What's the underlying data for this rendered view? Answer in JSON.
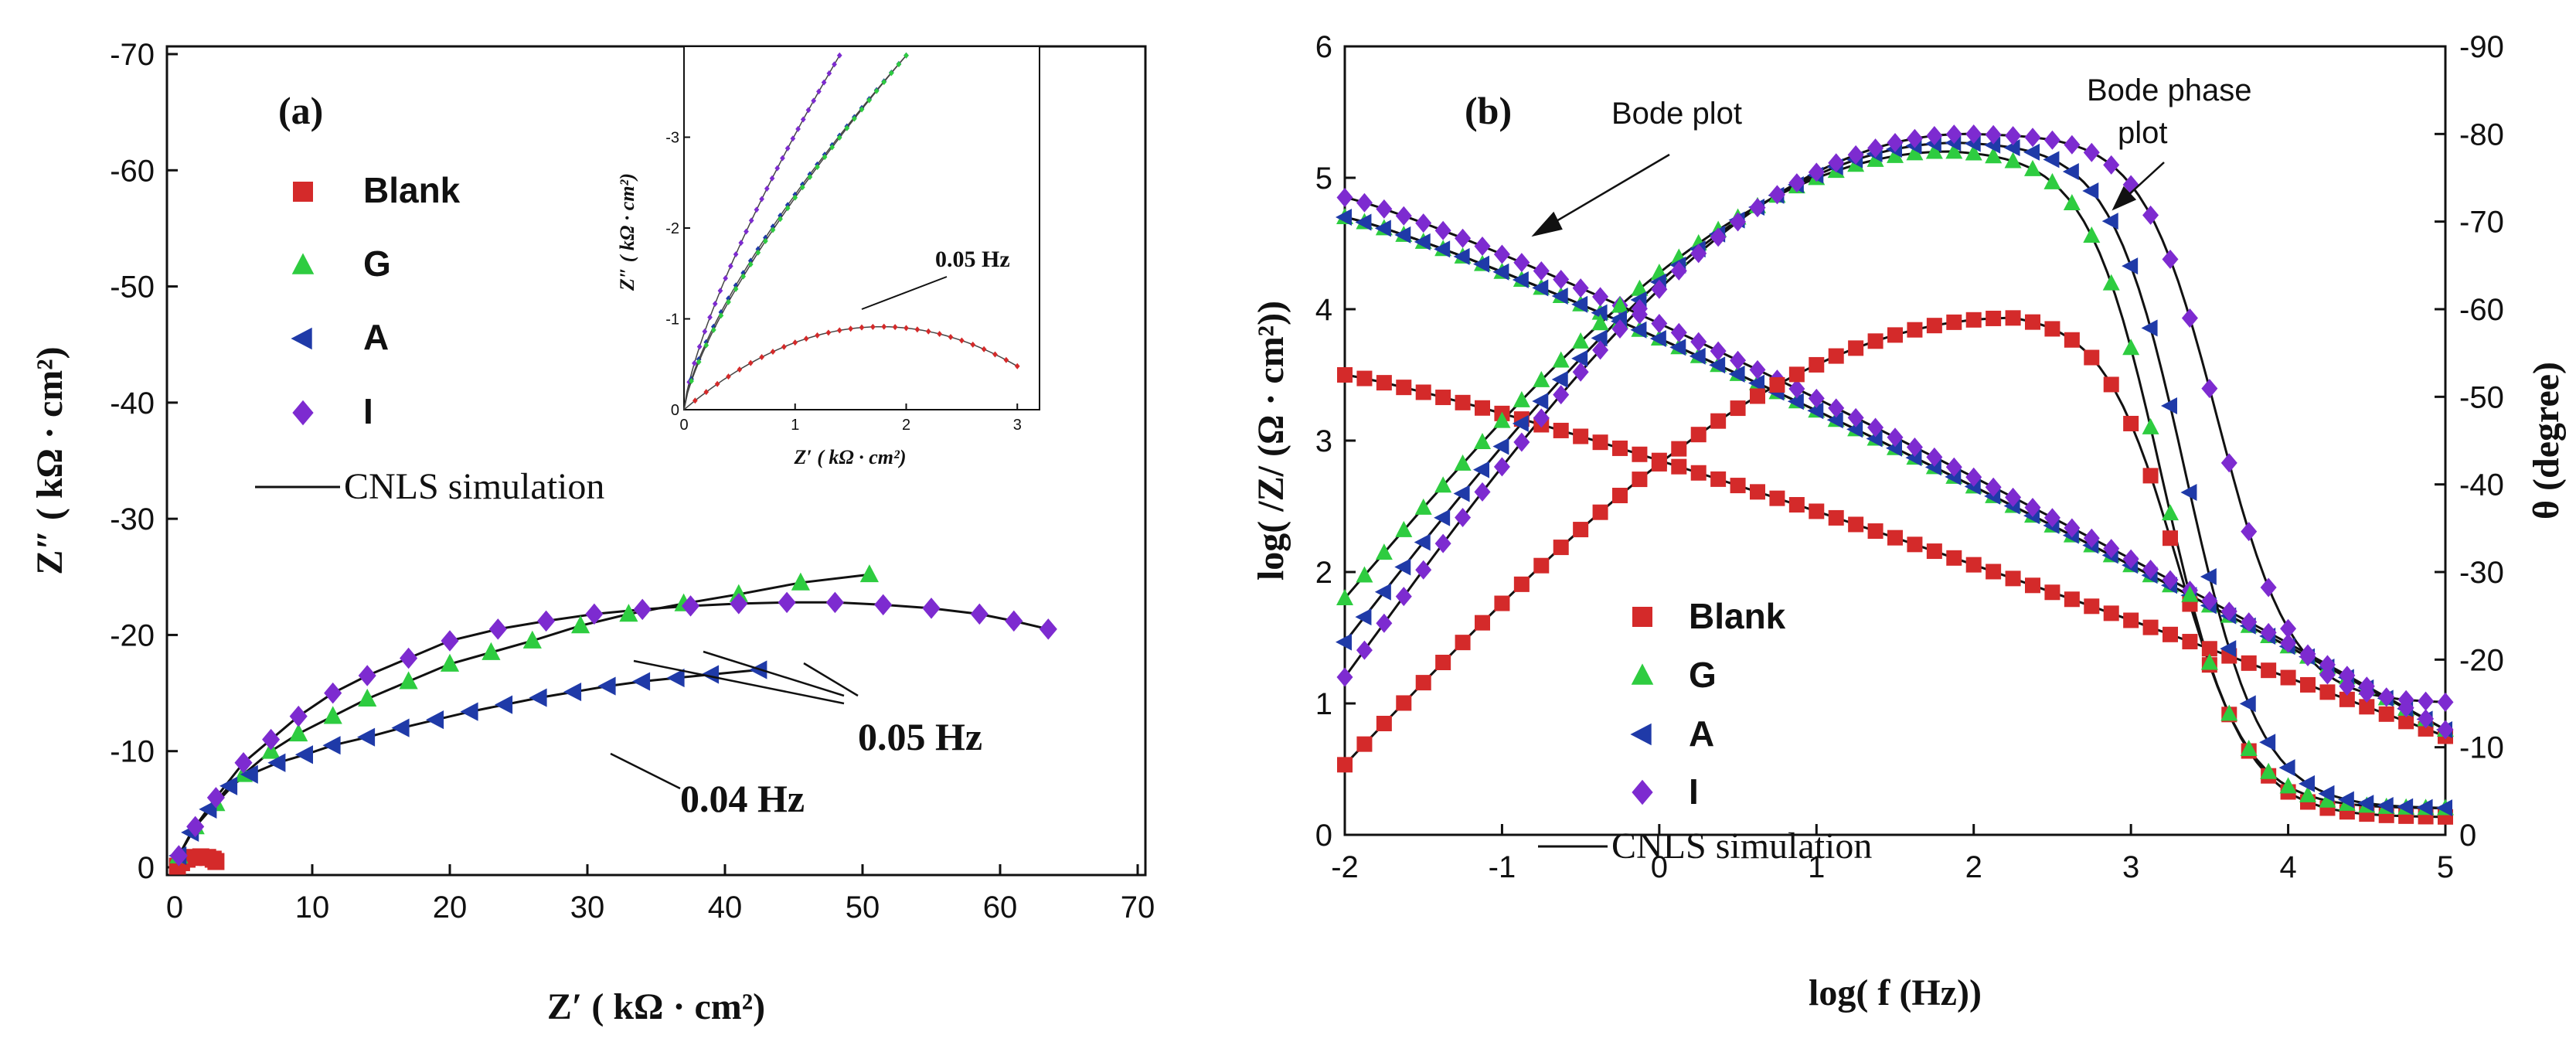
{
  "colors": {
    "Blank": "#d42a2a",
    "G": "#2ecc40",
    "A": "#1f3aa8",
    "I": "#7d2bd0",
    "line": "#111111"
  },
  "chart_data": [
    {
      "id": "a",
      "type": "scatter",
      "panel_label": "(a)",
      "xlabel": "Z′ ( kΩ · cm²)",
      "ylabel": "Z″ ( kΩ · cm²)",
      "xlim": [
        0,
        70
      ],
      "ylim": [
        0,
        -70
      ],
      "xticks": [
        "0",
        "10",
        "20",
        "30",
        "40",
        "50",
        "60",
        "70"
      ],
      "yticks": [
        "0",
        "-10",
        "-20",
        "-30",
        "-40",
        "-50",
        "-60",
        "-70"
      ],
      "legend": [
        "Blank",
        "G",
        "A",
        "I",
        "CNLS simulation"
      ],
      "legend_position": "upper-left",
      "series": [
        {
          "name": "Blank",
          "marker": "square",
          "x": [
            0.2,
            0.5,
            0.9,
            1.4,
            1.9,
            2.4,
            2.8,
            3.0
          ],
          "y": [
            -0.1,
            -0.4,
            -0.7,
            -0.85,
            -0.9,
            -0.85,
            -0.7,
            -0.5
          ]
        },
        {
          "name": "G",
          "marker": "triangle-up",
          "x": [
            0.3,
            1.5,
            3,
            5,
            7,
            9,
            11.5,
            14,
            17,
            20,
            23,
            26,
            29.5,
            33,
            37,
            41,
            45.5,
            50.5
          ],
          "y": [
            -1,
            -3.5,
            -5.5,
            -8,
            -10,
            -11.5,
            -13,
            -14.5,
            -16,
            -17.5,
            -18.5,
            -19.5,
            -20.8,
            -21.8,
            -22.7,
            -23.5,
            -24.5,
            -25.2
          ]
        },
        {
          "name": "A",
          "marker": "triangle-left",
          "x": [
            0.3,
            1.2,
            2.5,
            4,
            5.5,
            7.5,
            9.5,
            11.5,
            14,
            16.5,
            19,
            21.5,
            24,
            26.5,
            29,
            31.5,
            34,
            36.5,
            39,
            42.5
          ],
          "y": [
            -1,
            -3,
            -5,
            -7,
            -8,
            -9,
            -9.7,
            -10.5,
            -11.2,
            -12,
            -12.7,
            -13.4,
            -14,
            -14.6,
            -15.1,
            -15.6,
            -16,
            -16.3,
            -16.6,
            -17
          ]
        },
        {
          "name": "I",
          "marker": "diamond",
          "x": [
            0.3,
            1.5,
            3,
            5,
            7,
            9,
            11.5,
            14,
            17,
            20,
            23.5,
            27,
            30.5,
            34,
            37.5,
            41,
            44.5,
            48,
            51.5,
            55,
            58.5,
            61,
            63.5
          ],
          "y": [
            -1,
            -3.5,
            -6,
            -9,
            -11,
            -13,
            -15,
            -16.5,
            -18,
            -19.5,
            -20.5,
            -21.2,
            -21.8,
            -22.2,
            -22.5,
            -22.7,
            -22.8,
            -22.8,
            -22.6,
            -22.3,
            -21.8,
            -21.2,
            -20.5
          ]
        }
      ],
      "annotations": [
        "0.05 Hz",
        "0.04 Hz"
      ],
      "inset": {
        "xlabel": "Z′ ( kΩ · cm²)",
        "ylabel": "Z″ ( kΩ · cm²)",
        "xlim": [
          0,
          3.2
        ],
        "ylim": [
          0,
          -4
        ],
        "xticks": [
          "0",
          "1",
          "2",
          "3"
        ],
        "yticks": [
          "0",
          "-1",
          "-2",
          "-3"
        ],
        "annotation": "0.05 Hz"
      }
    },
    {
      "id": "b",
      "type": "scatter",
      "panel_label": "(b)",
      "xlabel": "log( f (Hz))",
      "ylabel": "log( /Z/ (Ω · cm²))",
      "y2label": "θ (degree)",
      "xlim": [
        -2,
        5
      ],
      "ylim": [
        0,
        6
      ],
      "y2lim": [
        0,
        -90
      ],
      "xticks": [
        "-2",
        "-1",
        "0",
        "1",
        "2",
        "3",
        "4",
        "5"
      ],
      "yticks": [
        "0",
        "1",
        "2",
        "3",
        "4",
        "5",
        "6"
      ],
      "y2ticks": [
        "0",
        "-10",
        "-20",
        "-30",
        "-40",
        "-50",
        "-60",
        "-70",
        "-80",
        "-90"
      ],
      "legend": [
        "Blank",
        "G",
        "A",
        "I",
        "CNLS simulation"
      ],
      "legend_position": "lower-center",
      "annotations": [
        "Bode plot",
        "Bode phase",
        "plot"
      ],
      "modulus_series": [
        {
          "name": "Blank",
          "log_max": 3.5,
          "log_min": 0.75
        },
        {
          "name": "G",
          "log_max": 4.7,
          "log_min": 0.8
        },
        {
          "name": "A",
          "log_max": 4.7,
          "log_min": 0.8
        },
        {
          "name": "I",
          "log_max": 4.85,
          "log_min": 0.8
        }
      ],
      "phase_series": [
        {
          "name": "Blank",
          "start": -8,
          "peak": -59,
          "peak_at": 2.25,
          "fall_mid": 3.3,
          "end": -2
        },
        {
          "name": "G",
          "start": -27,
          "peak": -78,
          "peak_at": 1.85,
          "fall_mid": 3.2,
          "end": -3
        },
        {
          "name": "A",
          "start": -22,
          "peak": -79,
          "peak_at": 1.9,
          "fall_mid": 3.35,
          "end": -3
        },
        {
          "name": "I",
          "start": -18,
          "peak": -80,
          "peak_at": 1.95,
          "fall_mid": 3.55,
          "end": -15
        }
      ]
    }
  ]
}
